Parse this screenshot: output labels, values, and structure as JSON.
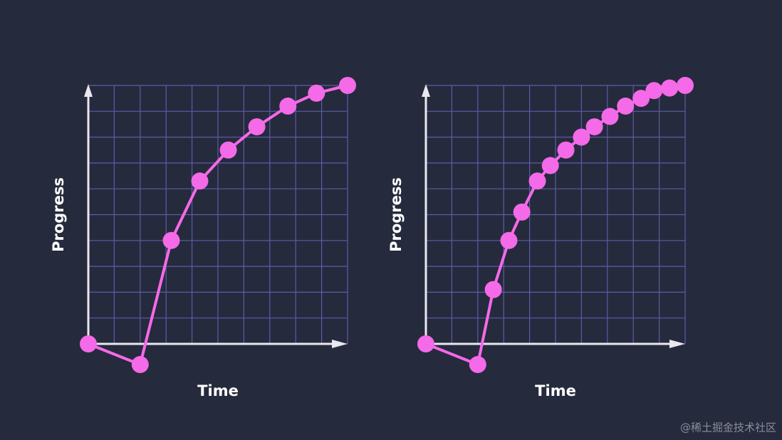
{
  "chart_data": [
    {
      "type": "line",
      "x_label": "Time",
      "y_label": "Progress",
      "xlim": [
        0,
        10
      ],
      "ylim": [
        0,
        10
      ],
      "xticks": [
        0,
        1,
        2,
        3,
        4,
        5,
        6,
        7,
        8,
        9,
        10
      ],
      "yticks": [
        0,
        1,
        2,
        3,
        4,
        5,
        6,
        7,
        8,
        9,
        10
      ],
      "grid": true,
      "series": [
        {
          "color": "#f46ae8",
          "x": [
            0,
            2.0,
            3.2,
            4.3,
            5.4,
            6.5,
            7.7,
            8.8,
            10
          ],
          "values": [
            0,
            -0.8,
            4.0,
            6.3,
            7.5,
            8.4,
            9.2,
            9.7,
            10
          ]
        }
      ]
    },
    {
      "type": "line",
      "x_label": "Time",
      "y_label": "Progress",
      "xlim": [
        0,
        10
      ],
      "ylim": [
        0,
        10
      ],
      "xticks": [
        0,
        1,
        2,
        3,
        4,
        5,
        6,
        7,
        8,
        9,
        10
      ],
      "yticks": [
        0,
        1,
        2,
        3,
        4,
        5,
        6,
        7,
        8,
        9,
        10
      ],
      "grid": true,
      "series": [
        {
          "color": "#f46ae8",
          "x": [
            0,
            2.0,
            2.6,
            3.2,
            3.7,
            4.3,
            4.8,
            5.4,
            6.0,
            6.5,
            7.1,
            7.7,
            8.3,
            8.8,
            9.4,
            10
          ],
          "values": [
            0,
            -0.8,
            2.1,
            4.0,
            5.1,
            6.3,
            6.9,
            7.5,
            8.0,
            8.4,
            8.8,
            9.2,
            9.5,
            9.8,
            9.9,
            10
          ]
        }
      ]
    }
  ],
  "watermark": "@稀土掘金技术社区"
}
